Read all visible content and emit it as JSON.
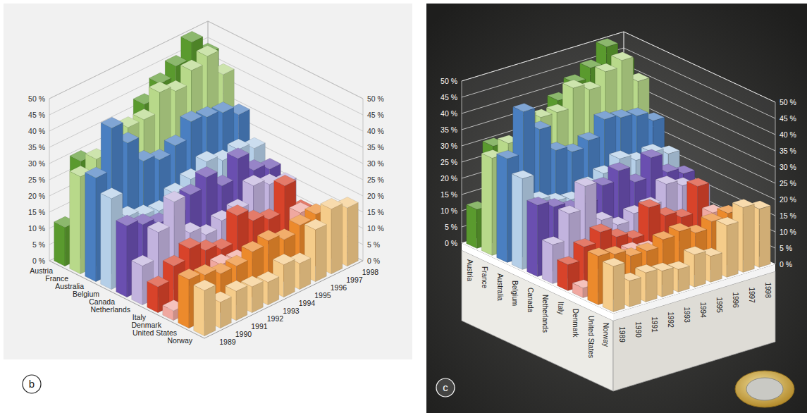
{
  "chart_data": [
    {
      "type": "bar",
      "title": "b",
      "categories": [
        "1989",
        "1990",
        "1991",
        "1992",
        "1993",
        "1994",
        "1995",
        "1996",
        "1997",
        "1998"
      ],
      "series": [
        {
          "name": "Austria",
          "color": "#5a9a2e",
          "values": [
            12,
            30,
            28,
            27,
            33,
            38,
            42,
            45,
            50,
            44
          ]
        },
        {
          "name": "France",
          "color": "#b8d98a",
          "values": [
            30,
            33,
            40,
            38,
            38,
            44,
            42,
            46,
            48,
            40
          ]
        },
        {
          "name": "Australia",
          "color": "#4a7fc1",
          "values": [
            32,
            45,
            38,
            30,
            28,
            30,
            35,
            34,
            33,
            30
          ]
        },
        {
          "name": "Belgium",
          "color": "#b5cfe8",
          "values": [
            28,
            20,
            18,
            17,
            20,
            22,
            25,
            23,
            24,
            22
          ]
        },
        {
          "name": "Canada",
          "color": "#6a4fb0",
          "values": [
            22,
            20,
            18,
            18,
            22,
            25,
            20,
            26,
            20,
            18
          ]
        },
        {
          "name": "Netherlands",
          "color": "#c2b3de",
          "values": [
            12,
            20,
            27,
            15,
            12,
            14,
            15,
            20,
            18,
            16
          ]
        },
        {
          "name": "Italy",
          "color": "#d8432a",
          "values": [
            8,
            12,
            15,
            12,
            10,
            18,
            14,
            12,
            20,
            10
          ]
        },
        {
          "name": "Denmark",
          "color": "#f0a8a0",
          "values": [
            3,
            5,
            8,
            10,
            9,
            7,
            6,
            8,
            14,
            10
          ]
        },
        {
          "name": "United States",
          "color": "#ec8a2c",
          "values": [
            15,
            14,
            12,
            12,
            14,
            15,
            13,
            15,
            16,
            14
          ]
        },
        {
          "name": "Norway",
          "color": "#f5cc8a",
          "values": [
            14,
            8,
            9,
            8,
            7,
            10,
            8,
            16,
            20,
            18
          ]
        }
      ],
      "ylim": [
        0,
        50
      ],
      "yticks": [
        {
          "value": 0,
          "label": "0 %"
        },
        {
          "value": 5,
          "label": "5 %"
        },
        {
          "value": 10,
          "label": "10 %"
        },
        {
          "value": 15,
          "label": "15 %"
        },
        {
          "value": 20,
          "label": "20 %"
        },
        {
          "value": 25,
          "label": "25 %"
        },
        {
          "value": 30,
          "label": "30 %"
        },
        {
          "value": 35,
          "label": "35 %"
        },
        {
          "value": 40,
          "label": "40 %"
        },
        {
          "value": 45,
          "label": "45 %"
        },
        {
          "value": 50,
          "label": "50 %"
        }
      ],
      "grid": true
    },
    {
      "type": "bar",
      "title": "c",
      "categories": [
        "1989",
        "1990",
        "1991",
        "1992",
        "1993",
        "1994",
        "1995",
        "1996",
        "1997",
        "1998"
      ],
      "series": [
        {
          "name": "Austria",
          "color": "#5a9a2e",
          "values": [
            12,
            30,
            28,
            27,
            33,
            38,
            42,
            45,
            50,
            44
          ]
        },
        {
          "name": "France",
          "color": "#b8d98a",
          "values": [
            30,
            33,
            40,
            38,
            38,
            44,
            42,
            46,
            48,
            40
          ]
        },
        {
          "name": "Australia",
          "color": "#4a7fc1",
          "values": [
            32,
            45,
            38,
            30,
            28,
            30,
            35,
            34,
            33,
            30
          ]
        },
        {
          "name": "Belgium",
          "color": "#b5cfe8",
          "values": [
            28,
            20,
            18,
            17,
            20,
            22,
            25,
            23,
            24,
            22
          ]
        },
        {
          "name": "Canada",
          "color": "#6a4fb0",
          "values": [
            22,
            20,
            18,
            18,
            22,
            25,
            20,
            26,
            20,
            18
          ]
        },
        {
          "name": "Netherlands",
          "color": "#c2b3de",
          "values": [
            12,
            20,
            27,
            15,
            12,
            14,
            15,
            20,
            18,
            16
          ]
        },
        {
          "name": "Italy",
          "color": "#d8432a",
          "values": [
            8,
            12,
            15,
            12,
            10,
            18,
            14,
            12,
            20,
            10
          ]
        },
        {
          "name": "Denmark",
          "color": "#f0a8a0",
          "values": [
            3,
            5,
            8,
            10,
            9,
            7,
            6,
            8,
            14,
            10
          ]
        },
        {
          "name": "United States",
          "color": "#ec8a2c",
          "values": [
            15,
            14,
            12,
            12,
            14,
            15,
            13,
            15,
            16,
            14
          ]
        },
        {
          "name": "Norway",
          "color": "#f5cc8a",
          "values": [
            14,
            8,
            9,
            8,
            7,
            10,
            8,
            16,
            20,
            18
          ]
        }
      ],
      "ylim": [
        0,
        50
      ],
      "yticks": [
        {
          "value": 0,
          "label": "0 %"
        },
        {
          "value": 5,
          "label": "5 %"
        },
        {
          "value": 10,
          "label": "10 %"
        },
        {
          "value": 15,
          "label": "15 %"
        },
        {
          "value": 20,
          "label": "20 %"
        },
        {
          "value": 25,
          "label": "25 %"
        },
        {
          "value": 30,
          "label": "30 %"
        },
        {
          "value": 35,
          "label": "35 %"
        },
        {
          "value": 40,
          "label": "40 %"
        },
        {
          "value": 45,
          "label": "45 %"
        },
        {
          "value": 50,
          "label": "50 %"
        }
      ],
      "grid": true
    }
  ]
}
